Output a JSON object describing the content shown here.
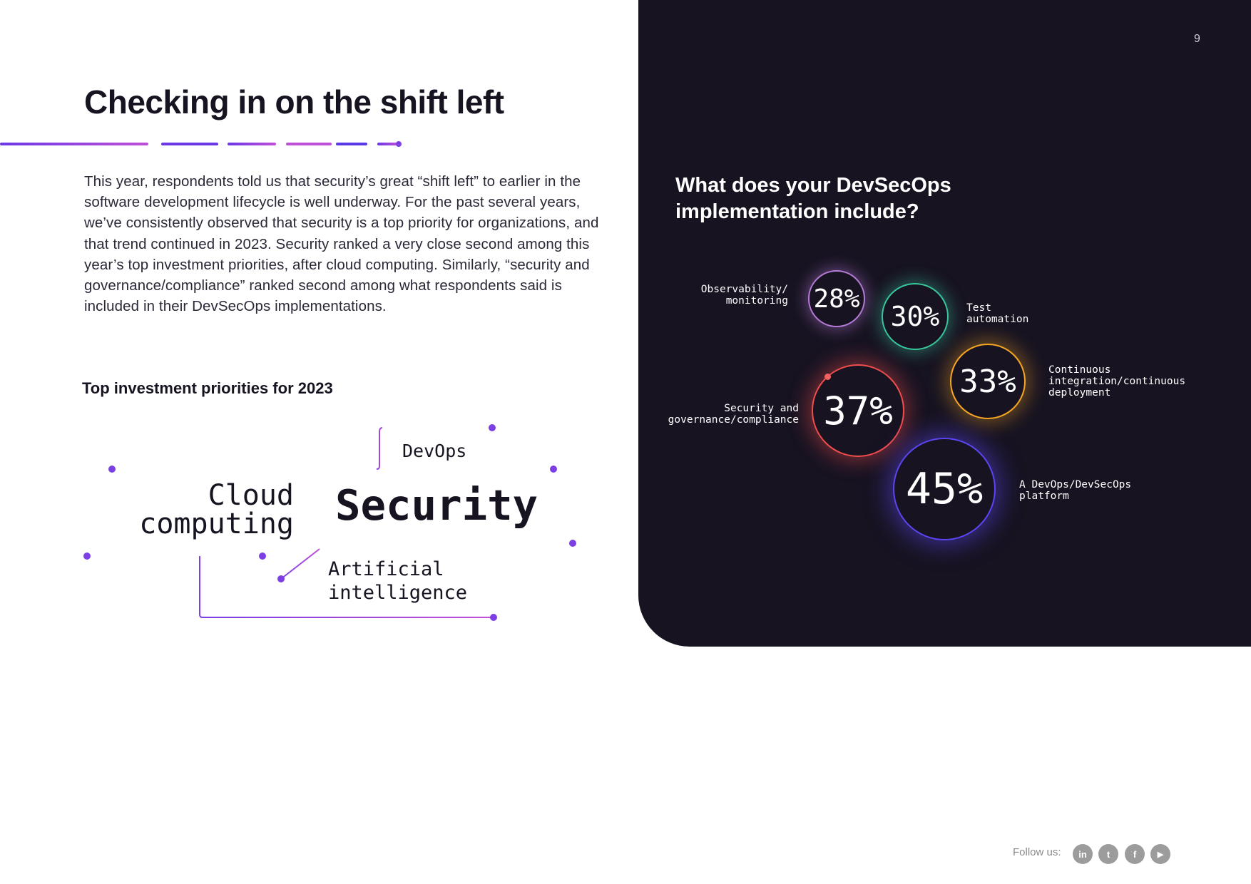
{
  "page_number": "9",
  "left": {
    "title": "Checking in on the shift left",
    "body": "This year, respondents told us that security’s great “shift left” to earlier in the software development lifecycle is well underway. For the past several years, we’ve consistently observed that security is a top priority for organizations, and that trend continued in 2023. Security ranked a very close second among this year’s top investment priorities, after cloud computing. Similarly, “security and governance/compliance” ranked second among what respondents said is included in their DevSecOps implementations.",
    "priorities_heading": "Top investment priorities for 2023",
    "priorities": {
      "devops": "DevOps",
      "cloud_line1": "Cloud",
      "cloud_line2": "computing",
      "security": "Security",
      "ai_line1": "Artificial",
      "ai_line2": "intelligence"
    }
  },
  "right": {
    "question": "What does your DevSecOps implementation include?",
    "bubbles": [
      {
        "value": "28%",
        "label_line1": "Observability/",
        "label_line2": "monitoring",
        "label_line3": "",
        "color": "#b57bd6"
      },
      {
        "value": "30%",
        "label_line1": "Test",
        "label_line2": "automation",
        "label_line3": "",
        "color": "#39c59a"
      },
      {
        "value": "33%",
        "label_line1": "Continuous",
        "label_line2": "integration/continuous",
        "label_line3": "deployment",
        "color": "#f5a623"
      },
      {
        "value": "37%",
        "label_line1": "Security and",
        "label_line2": "governance/compliance",
        "label_line3": "",
        "color": "#f04d4d"
      },
      {
        "value": "45%",
        "label_line1": "A DevOps/DevSecOps",
        "label_line2": "platform",
        "label_line3": "",
        "color": "#5a45f0"
      }
    ]
  },
  "footer": {
    "follow_label": "Follow us:",
    "icons": [
      "linkedin-icon",
      "twitter-icon",
      "facebook-icon",
      "youtube-icon"
    ],
    "linkedin_glyph": "in",
    "twitter_glyph": "t",
    "facebook_glyph": "f",
    "youtube_glyph": "▶"
  },
  "colors": {
    "accent_purple": "#7b3fe4",
    "accent_pink": "#c04fd8",
    "dark_bg": "#171321"
  }
}
